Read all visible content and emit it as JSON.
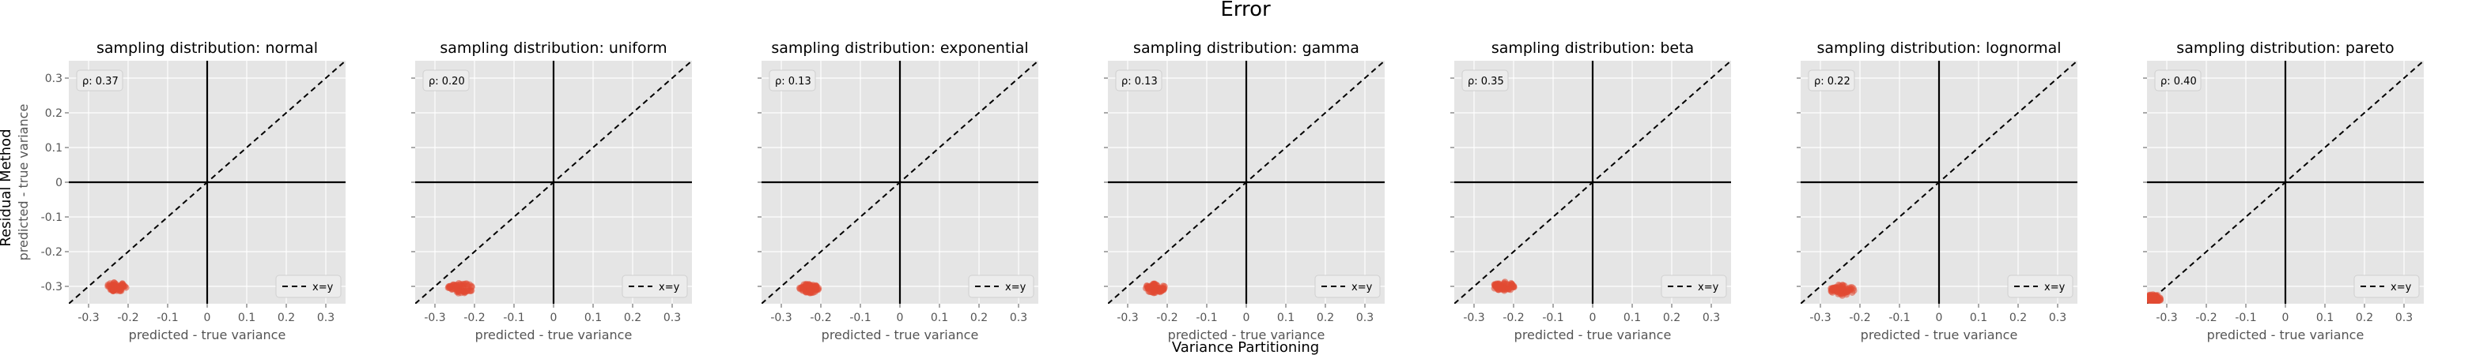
{
  "figure": {
    "suptitle": "Error",
    "supxlabel": "Variance Partitioning",
    "supylabel": "Residual Method"
  },
  "style": {
    "panel_bg": "#e5e5e5",
    "grid": "#ffffff",
    "point_color": "#e24a33",
    "axis_line": "#000000",
    "diag_line": "#000000",
    "tick_text": "#555555"
  },
  "chart_data": [
    {
      "type": "scatter",
      "title": "sampling distribution: normal",
      "xlabel": "predicted - true variance",
      "ylabel": "predicted - true variance",
      "xlim": [
        -0.35,
        0.35
      ],
      "ylim": [
        -0.35,
        0.35
      ],
      "xticks": [
        -0.3,
        -0.2,
        -0.1,
        0,
        0.1,
        0.2,
        0.3
      ],
      "yticks": [
        -0.3,
        -0.2,
        -0.1,
        0,
        0.1,
        0.2,
        0.3
      ],
      "annotation": "ρ: 0.37",
      "legend": [
        {
          "label": "x=y",
          "style": "dashed"
        }
      ],
      "legend_loc": "lower right",
      "grid": true,
      "cluster": {
        "x_center": -0.23,
        "y_center": -0.302,
        "x_spread": 0.025,
        "y_spread": 0.013,
        "n": 60
      }
    },
    {
      "type": "scatter",
      "title": "sampling distribution: uniform",
      "xlabel": "predicted - true variance",
      "ylabel": "",
      "xlim": [
        -0.35,
        0.35
      ],
      "ylim": [
        -0.35,
        0.35
      ],
      "xticks": [
        -0.3,
        -0.2,
        -0.1,
        0,
        0.1,
        0.2,
        0.3
      ],
      "yticks": [
        -0.3,
        -0.2,
        -0.1,
        0,
        0.1,
        0.2,
        0.3
      ],
      "annotation": "ρ: 0.20",
      "legend": [
        {
          "label": "x=y",
          "style": "dashed"
        }
      ],
      "legend_loc": "lower right",
      "grid": true,
      "cluster": {
        "x_center": -0.235,
        "y_center": -0.305,
        "x_spread": 0.032,
        "y_spread": 0.015,
        "n": 60
      }
    },
    {
      "type": "scatter",
      "title": "sampling distribution: exponential",
      "xlabel": "predicted - true variance",
      "ylabel": "",
      "xlim": [
        -0.35,
        0.35
      ],
      "ylim": [
        -0.35,
        0.35
      ],
      "xticks": [
        -0.3,
        -0.2,
        -0.1,
        0,
        0.1,
        0.2,
        0.3
      ],
      "yticks": [
        -0.3,
        -0.2,
        -0.1,
        0,
        0.1,
        0.2,
        0.3
      ],
      "annotation": "ρ: 0.13",
      "legend": [
        {
          "label": "x=y",
          "style": "dashed"
        }
      ],
      "legend_loc": "lower right",
      "grid": true,
      "cluster": {
        "x_center": -0.23,
        "y_center": -0.305,
        "x_spread": 0.025,
        "y_spread": 0.014,
        "n": 60
      }
    },
    {
      "type": "scatter",
      "title": "sampling distribution: gamma",
      "xlabel": "predicted - true variance",
      "ylabel": "",
      "xlim": [
        -0.35,
        0.35
      ],
      "ylim": [
        -0.35,
        0.35
      ],
      "xticks": [
        -0.3,
        -0.2,
        -0.1,
        0,
        0.1,
        0.2,
        0.3
      ],
      "yticks": [
        -0.3,
        -0.2,
        -0.1,
        0,
        0.1,
        0.2,
        0.3
      ],
      "annotation": "ρ: 0.13",
      "legend": [
        {
          "label": "x=y",
          "style": "dashed"
        }
      ],
      "legend_loc": "lower right",
      "grid": true,
      "cluster": {
        "x_center": -0.23,
        "y_center": -0.305,
        "x_spread": 0.025,
        "y_spread": 0.014,
        "n": 60
      }
    },
    {
      "type": "scatter",
      "title": "sampling distribution: beta",
      "xlabel": "predicted - true variance",
      "ylabel": "",
      "xlim": [
        -0.35,
        0.35
      ],
      "ylim": [
        -0.35,
        0.35
      ],
      "xticks": [
        -0.3,
        -0.2,
        -0.1,
        0,
        0.1,
        0.2,
        0.3
      ],
      "yticks": [
        -0.3,
        -0.2,
        -0.1,
        0,
        0.1,
        0.2,
        0.3
      ],
      "annotation": "ρ: 0.35",
      "legend": [
        {
          "label": "x=y",
          "style": "dashed"
        }
      ],
      "legend_loc": "lower right",
      "grid": true,
      "cluster": {
        "x_center": -0.225,
        "y_center": -0.3,
        "x_spread": 0.027,
        "y_spread": 0.013,
        "n": 60
      }
    },
    {
      "type": "scatter",
      "title": "sampling distribution: lognormal",
      "xlabel": "predicted - true variance",
      "ylabel": "",
      "xlim": [
        -0.35,
        0.35
      ],
      "ylim": [
        -0.35,
        0.35
      ],
      "xticks": [
        -0.3,
        -0.2,
        -0.1,
        0,
        0.1,
        0.2,
        0.3
      ],
      "yticks": [
        -0.3,
        -0.2,
        -0.1,
        0,
        0.1,
        0.2,
        0.3
      ],
      "annotation": "ρ: 0.22",
      "legend": [
        {
          "label": "x=y",
          "style": "dashed"
        }
      ],
      "legend_loc": "lower right",
      "grid": true,
      "cluster": {
        "x_center": -0.245,
        "y_center": -0.31,
        "x_spread": 0.03,
        "y_spread": 0.017,
        "n": 60
      }
    },
    {
      "type": "scatter",
      "title": "sampling distribution: pareto",
      "xlabel": "predicted - true variance",
      "ylabel": "",
      "xlim": [
        -0.35,
        0.35
      ],
      "ylim": [
        -0.35,
        0.35
      ],
      "xticks": [
        -0.3,
        -0.2,
        -0.1,
        0,
        0.1,
        0.2,
        0.3
      ],
      "yticks": [
        -0.3,
        -0.2,
        -0.1,
        0,
        0.1,
        0.2,
        0.3
      ],
      "annotation": "ρ: 0.40",
      "legend": [
        {
          "label": "x=y",
          "style": "dashed"
        }
      ],
      "legend_loc": "lower right",
      "grid": true,
      "cluster": {
        "x_center": -0.335,
        "y_center": -0.335,
        "x_spread": 0.02,
        "y_spread": 0.012,
        "n": 60
      }
    }
  ]
}
